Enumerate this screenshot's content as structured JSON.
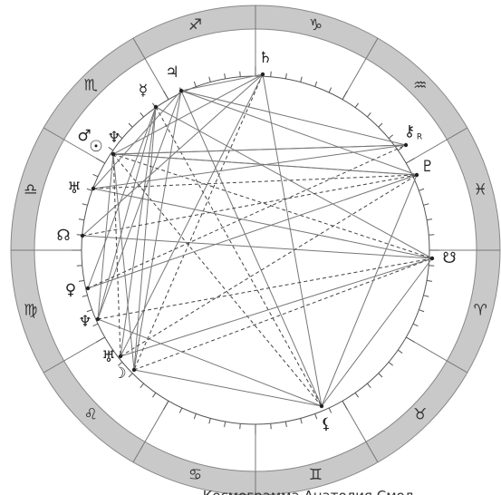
{
  "zodiac": [
    "♑",
    "♒",
    "♓",
    "♈",
    "♉",
    "♊",
    "♋",
    "♌",
    "♍",
    "♎",
    "♏",
    "♐"
  ],
  "planets": [
    {
      "label": "♄"
    },
    {
      "label": "♃"
    },
    {
      "label": "☿"
    },
    {
      "label": "♂"
    },
    {
      "label": "☉"
    },
    {
      "label": "♆"
    },
    {
      "label": "♅"
    },
    {
      "label": "☊"
    },
    {
      "label": "♀"
    },
    {
      "label": "♆"
    },
    {
      "label": "♅"
    },
    {
      "label": "☽"
    },
    {
      "label": "⚸"
    },
    {
      "label": "☋"
    },
    {
      "label": "♇"
    },
    {
      "label": "⚷"
    }
  ],
  "retrograde": "R",
  "caption": "Космограмма Анатолия Смол"
}
